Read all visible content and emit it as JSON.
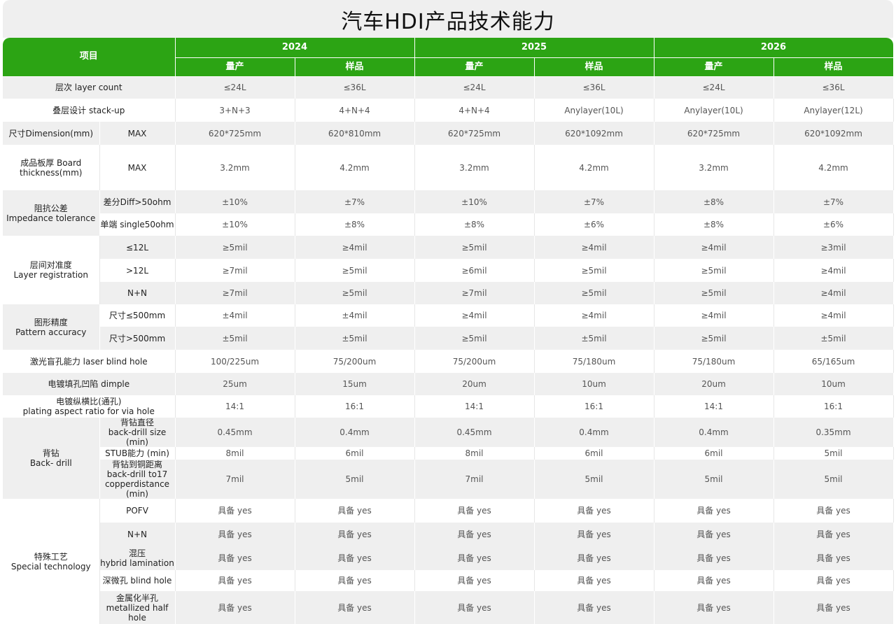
{
  "title": "汽车HDI产品技术能力",
  "header": {
    "item": "项目",
    "years": [
      "2024",
      "2025",
      "2026"
    ],
    "mass": "量产",
    "sample": "样品"
  },
  "groups": {
    "impedance": "阻抗公差\nImpedance tolerance",
    "registration": "层间对准度\nLayer registration",
    "pattern": "图形精度\nPattern accuracy",
    "backdrill": "背钻\nBack- drill",
    "special": "特殊工艺\nSpecial  technology"
  },
  "rows": [
    {
      "label": "层次  layer count",
      "values": [
        "≤24L",
        "≤36L",
        "≤24L",
        "≤36L",
        "≤24L",
        "≤36L"
      ]
    },
    {
      "label": "叠层设计 stack-up",
      "values": [
        "3+N+3",
        "4+N+4",
        "4+N+4",
        "Anylayer(10L)",
        "Anylayer(10L)",
        "Anylayer(12L)"
      ]
    },
    {
      "label": "尺寸Dimension(mm)",
      "sub": "MAX",
      "values": [
        "620*725mm",
        "620*810mm",
        "620*725mm",
        "620*1092mm",
        "620*725mm",
        "620*1092mm"
      ]
    },
    {
      "label": "成品板厚 Board thickness(mm)",
      "sub": "MAX",
      "values": [
        "3.2mm",
        "4.2mm",
        "3.2mm",
        "4.2mm",
        "3.2mm",
        "4.2mm"
      ]
    },
    {
      "sub": "差分Diff>50ohm",
      "values": [
        "±10%",
        "±7%",
        "±10%",
        "±7%",
        "±8%",
        "±7%"
      ]
    },
    {
      "sub": "单端 single50ohm",
      "values": [
        "±10%",
        "±8%",
        "±8%",
        "±6%",
        "±8%",
        "±6%"
      ]
    },
    {
      "sub": "≤12L",
      "values": [
        "≥5mil",
        "≥4mil",
        "≥5mil",
        "≥4mil",
        "≥4mil",
        "≥3mil"
      ]
    },
    {
      "sub": ">12L",
      "values": [
        "≥7mil",
        "≥5mil",
        "≥6mil",
        "≥5mil",
        "≥5mil",
        "≥4mil"
      ]
    },
    {
      "sub": "N+N",
      "values": [
        "≥7mil",
        "≥5mil",
        "≥7mil",
        "≥5mil",
        "≥5mil",
        "≥4mil"
      ]
    },
    {
      "sub": "尺寸≤500mm",
      "values": [
        "±4mil",
        "±4mil",
        "≥4mil",
        "≥4mil",
        "≥4mil",
        "≥4mil"
      ]
    },
    {
      "sub": "尺寸>500mm",
      "values": [
        "±5mil",
        "±5mil",
        "≥5mil",
        "±5mil",
        "≥5mil",
        "±5mil"
      ]
    },
    {
      "label": "激光盲孔能力 laser blind hole",
      "values": [
        "100/225um",
        "75/200um",
        "75/200um",
        "75/180um",
        "75/180um",
        "65/165um"
      ]
    },
    {
      "label": "电镀填孔凹陷 dimple",
      "values": [
        "25um",
        "15um",
        "20um",
        "10um",
        "20um",
        "10um"
      ]
    },
    {
      "label": "电镀纵横比(通孔)\nplating aspect ratio for via hole",
      "values": [
        "14:1",
        "16:1",
        "14:1",
        "16:1",
        "14:1",
        "16:1"
      ]
    },
    {
      "sub": "背钻直径\nback-drill size (min)",
      "values": [
        "0.45mm",
        "0.4mm",
        "0.45mm",
        "0.4mm",
        "0.4mm",
        "0.35mm"
      ]
    },
    {
      "sub": "STUB能力 (min)",
      "values": [
        "8mil",
        "6mil",
        "8mil",
        "6mil",
        "6mil",
        "5mil"
      ]
    },
    {
      "sub": "背钻到铜距离\nback-drill to17\ncopperdistance (min)",
      "values": [
        "7mil",
        "5mil",
        "7mil",
        "5mil",
        "5mil",
        "5mil"
      ]
    },
    {
      "sub": "POFV",
      "values": [
        "具备 yes",
        "具备 yes",
        "具备 yes",
        "具备 yes",
        "具备 yes",
        "具备 yes"
      ]
    },
    {
      "sub": "N+N",
      "values": [
        "具备 yes",
        "具备 yes",
        "具备 yes",
        "具备 yes",
        "具备 yes",
        "具备 yes"
      ]
    },
    {
      "sub": "混压\nhybrid lamination",
      "values": [
        "具备 yes",
        "具备 yes",
        "具备 yes",
        "具备 yes",
        "具备 yes",
        "具备 yes"
      ]
    },
    {
      "sub": "深微孔 blind hole",
      "values": [
        "具备 yes",
        "具备 yes",
        "具备 yes",
        "具备 yes",
        "具备 yes",
        "具备 yes"
      ]
    },
    {
      "sub": "金属化半孔\nmetallized half hole",
      "values": [
        "具备 yes",
        "具备 yes",
        "具备 yes",
        "具备 yes",
        "具备 yes",
        "具备 yes"
      ]
    }
  ]
}
